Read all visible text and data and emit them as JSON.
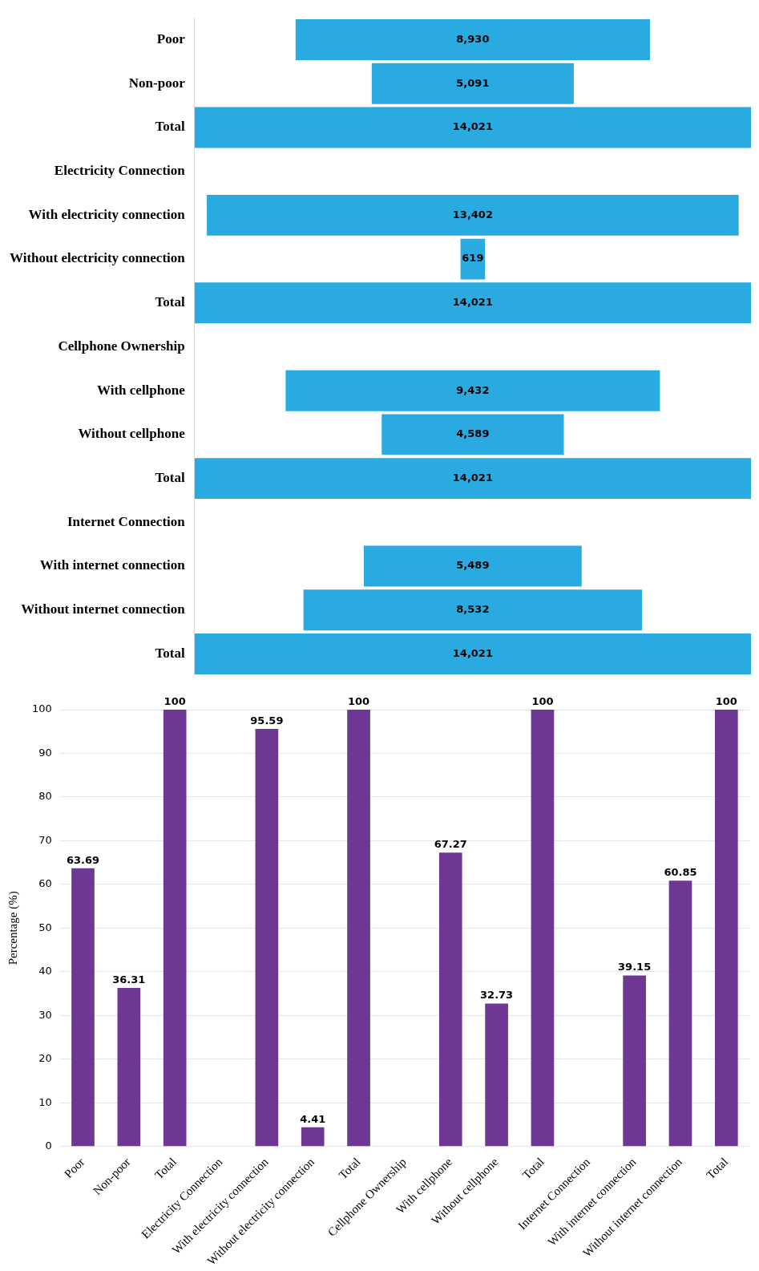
{
  "chart_data": [
    {
      "type": "other",
      "categories": [
        "Poor",
        "Non-poor",
        "Total",
        "Electricity Connection",
        "With electricity connection",
        "Without electricity connection",
        "Total",
        "Cellphone Ownership",
        "With cellphone",
        "Without cellphone",
        "Total",
        "Internet Connection",
        "With internet connection",
        "Without internet connection",
        "Total"
      ],
      "values": [
        8930,
        5091,
        14021,
        null,
        13402,
        619,
        14021,
        null,
        9432,
        4589,
        14021,
        null,
        5489,
        8532,
        14021
      ],
      "value_labels": [
        "8,930",
        "5,091",
        "14,021",
        null,
        "13,402",
        "619",
        "14,021",
        null,
        "9,432",
        "4,589",
        "14,021",
        null,
        "5,489",
        "8,532",
        "14,021"
      ],
      "color": "#29abe2"
    },
    {
      "type": "bar",
      "ylabel": "Percentage (%)",
      "categories": [
        "Poor",
        "Non-poor",
        "Total",
        "Electricity Connection",
        "With electricity connection",
        "Without electricity connection",
        "Total",
        "Cellphone Ownership",
        "With cellphone",
        "Without cellphone",
        "Total",
        "Internet Connection",
        "With internet connection",
        "Without internet connection",
        "Total"
      ],
      "values": [
        63.69,
        36.31,
        100,
        null,
        95.59,
        4.41,
        100,
        null,
        67.27,
        32.73,
        100,
        null,
        39.15,
        60.85,
        100
      ],
      "color": "#6f3794",
      "ylim": [
        0,
        100
      ],
      "yticks": [
        0,
        10,
        20,
        30,
        40,
        50,
        60,
        70,
        80,
        90,
        100
      ],
      "grid": "y",
      "data_labels": true
    }
  ]
}
